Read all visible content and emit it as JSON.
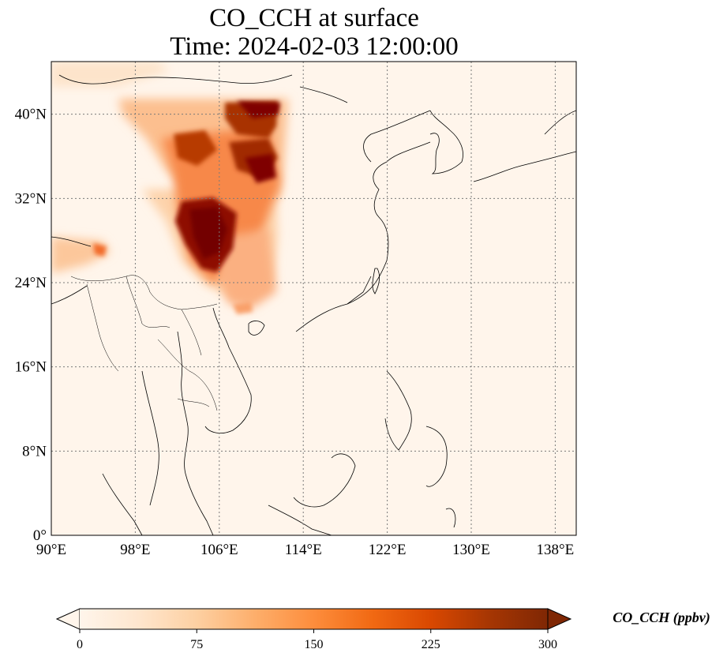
{
  "title": {
    "line1": "CO_CCH at surface",
    "line2": "Time: 2024-02-03 12:00:00"
  },
  "map": {
    "lon_range": [
      90,
      140
    ],
    "lat_range": [
      0,
      45
    ],
    "lon_ticks": [
      {
        "value": 90,
        "label": "90°E"
      },
      {
        "value": 98,
        "label": "98°E"
      },
      {
        "value": 106,
        "label": "106°E"
      },
      {
        "value": 114,
        "label": "114°E"
      },
      {
        "value": 122,
        "label": "122°E"
      },
      {
        "value": 130,
        "label": "130°E"
      },
      {
        "value": 138,
        "label": "138°E"
      }
    ],
    "lat_ticks": [
      {
        "value": 0,
        "label": "0°"
      },
      {
        "value": 8,
        "label": "8°N"
      },
      {
        "value": 16,
        "label": "16°N"
      },
      {
        "value": 24,
        "label": "24°N"
      },
      {
        "value": 32,
        "label": "32°N"
      },
      {
        "value": 40,
        "label": "40°N"
      }
    ],
    "gridlines": true,
    "background_color": "#fff5eb",
    "coastline_color": "#000000"
  },
  "colorbar": {
    "title": "CO_CCH (ppbv)",
    "min": 0,
    "max": 300,
    "extend": "both",
    "ticks": [
      {
        "value": 0,
        "label": "0"
      },
      {
        "value": 75,
        "label": "75"
      },
      {
        "value": 150,
        "label": "150"
      },
      {
        "value": 225,
        "label": "225"
      },
      {
        "value": 300,
        "label": "300"
      }
    ],
    "colormap": [
      "#fff5eb",
      "#fee6ce",
      "#fdd0a2",
      "#fdae6b",
      "#fd8d3c",
      "#f16913",
      "#d94801",
      "#a63603",
      "#7f2704"
    ]
  }
}
